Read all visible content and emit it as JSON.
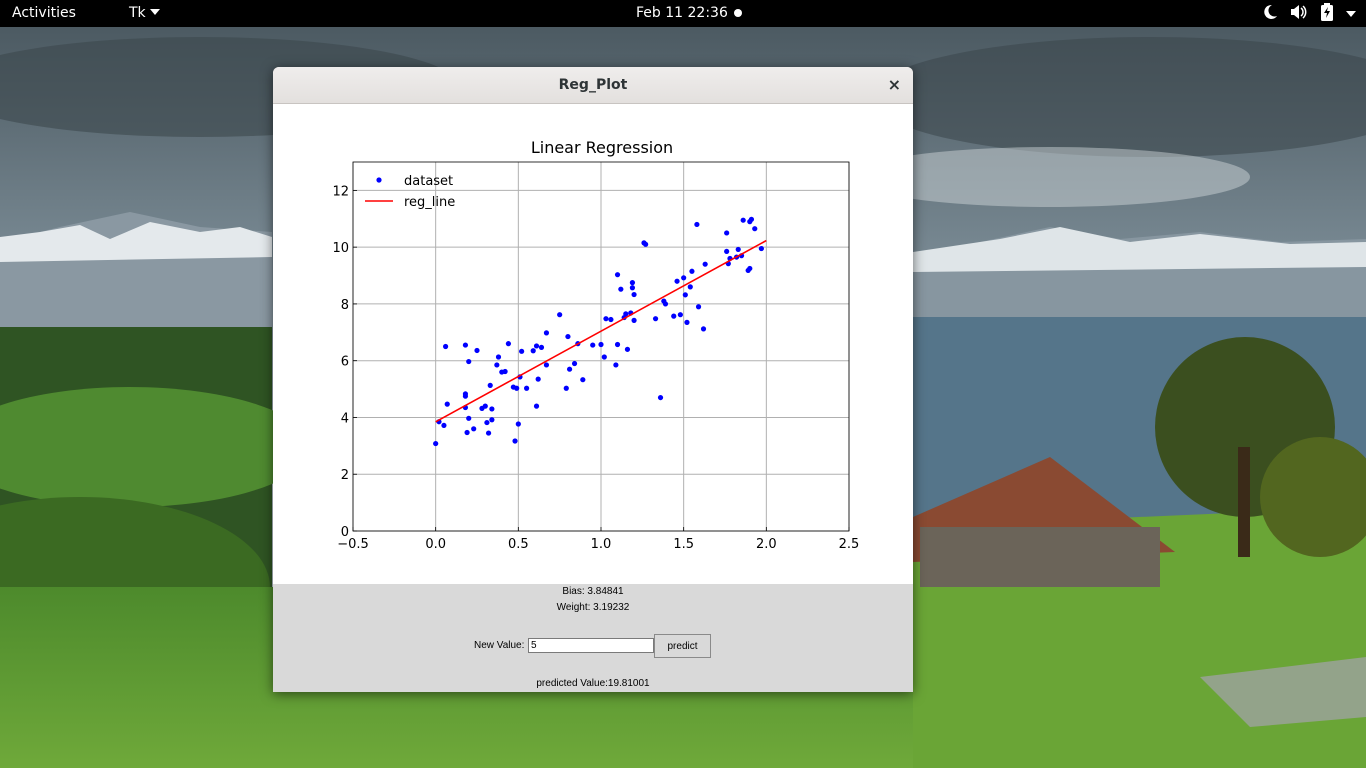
{
  "topbar": {
    "activities": "Activities",
    "app_menu": "Tk",
    "clock": "Feb 11  22:36"
  },
  "window": {
    "title": "Reg_Plot",
    "close_glyph": "×"
  },
  "controls": {
    "bias_text": "Bias: 3.84841",
    "weight_text": "Weight: 3.19232",
    "new_value_label": "New Value:",
    "new_value_input": "5",
    "predict_label": "predict",
    "predicted_text": "predicted Value:19.81001"
  },
  "icons": [
    "night-mode-icon",
    "volume-icon",
    "battery-icon",
    "chevron-down-icon",
    "close-icon"
  ],
  "colors": {
    "scatter": "#0000ff",
    "reg_line": "#ff0000",
    "grid": "#b0b0b0"
  },
  "chart_data": {
    "type": "scatter",
    "title": "Linear Regression",
    "xlabel": "",
    "ylabel": "",
    "xlim": [
      -0.5,
      2.5
    ],
    "ylim": [
      0,
      13
    ],
    "xticks": [
      -0.5,
      0.0,
      0.5,
      1.0,
      1.5,
      2.0,
      2.5
    ],
    "xtick_labels": [
      "−0.5",
      "0.0",
      "0.5",
      "1.0",
      "1.5",
      "2.0",
      "2.5"
    ],
    "yticks": [
      0,
      2,
      4,
      6,
      8,
      10,
      12
    ],
    "ytick_labels": [
      "0",
      "2",
      "4",
      "6",
      "8",
      "10",
      "12"
    ],
    "grid": true,
    "legend": "top-left",
    "series": [
      {
        "name": "dataset",
        "kind": "scatter",
        "points": [
          [
            0.0,
            3.08
          ],
          [
            0.02,
            3.85
          ],
          [
            0.05,
            3.72
          ],
          [
            0.06,
            6.5
          ],
          [
            0.07,
            4.47
          ],
          [
            0.18,
            4.83
          ],
          [
            0.18,
            4.75
          ],
          [
            0.18,
            4.35
          ],
          [
            0.18,
            6.55
          ],
          [
            0.19,
            3.47
          ],
          [
            0.2,
            5.97
          ],
          [
            0.2,
            3.97
          ],
          [
            0.23,
            3.6
          ],
          [
            0.25,
            6.36
          ],
          [
            0.28,
            4.32
          ],
          [
            0.3,
            4.4
          ],
          [
            0.31,
            3.82
          ],
          [
            0.32,
            3.45
          ],
          [
            0.33,
            5.13
          ],
          [
            0.34,
            4.3
          ],
          [
            0.34,
            3.92
          ],
          [
            0.37,
            5.85
          ],
          [
            0.38,
            6.13
          ],
          [
            0.4,
            5.6
          ],
          [
            0.42,
            5.62
          ],
          [
            0.44,
            6.6
          ],
          [
            0.47,
            5.07
          ],
          [
            0.48,
            3.17
          ],
          [
            0.49,
            5.03
          ],
          [
            0.5,
            3.77
          ],
          [
            0.51,
            5.43
          ],
          [
            0.52,
            6.33
          ],
          [
            0.55,
            5.03
          ],
          [
            0.59,
            6.35
          ],
          [
            0.61,
            6.52
          ],
          [
            0.61,
            4.4
          ],
          [
            0.62,
            5.35
          ],
          [
            0.64,
            6.47
          ],
          [
            0.67,
            5.85
          ],
          [
            0.67,
            6.98
          ],
          [
            0.75,
            7.62
          ],
          [
            0.79,
            5.03
          ],
          [
            0.8,
            6.85
          ],
          [
            0.81,
            5.7
          ],
          [
            0.84,
            5.9
          ],
          [
            0.86,
            6.6
          ],
          [
            0.89,
            5.33
          ],
          [
            0.95,
            6.55
          ],
          [
            1.0,
            6.57
          ],
          [
            1.02,
            6.13
          ],
          [
            1.03,
            7.48
          ],
          [
            1.06,
            7.45
          ],
          [
            1.09,
            5.85
          ],
          [
            1.1,
            6.57
          ],
          [
            1.1,
            9.03
          ],
          [
            1.12,
            8.52
          ],
          [
            1.14,
            7.52
          ],
          [
            1.15,
            7.65
          ],
          [
            1.16,
            6.4
          ],
          [
            1.18,
            7.68
          ],
          [
            1.19,
            8.57
          ],
          [
            1.19,
            8.75
          ],
          [
            1.2,
            7.42
          ],
          [
            1.2,
            8.33
          ],
          [
            1.26,
            10.15
          ],
          [
            1.27,
            10.1
          ],
          [
            1.33,
            7.48
          ],
          [
            1.36,
            4.7
          ],
          [
            1.38,
            8.1
          ],
          [
            1.39,
            8.0
          ],
          [
            1.44,
            7.57
          ],
          [
            1.46,
            8.8
          ],
          [
            1.48,
            7.62
          ],
          [
            1.5,
            8.92
          ],
          [
            1.51,
            8.32
          ],
          [
            1.52,
            7.35
          ],
          [
            1.54,
            8.6
          ],
          [
            1.55,
            9.15
          ],
          [
            1.58,
            10.8
          ],
          [
            1.59,
            7.9
          ],
          [
            1.62,
            7.12
          ],
          [
            1.63,
            9.4
          ],
          [
            1.76,
            9.85
          ],
          [
            1.76,
            10.5
          ],
          [
            1.77,
            9.42
          ],
          [
            1.78,
            9.6
          ],
          [
            1.82,
            9.65
          ],
          [
            1.83,
            9.92
          ],
          [
            1.85,
            9.7
          ],
          [
            1.86,
            10.95
          ],
          [
            1.89,
            9.18
          ],
          [
            1.9,
            9.25
          ],
          [
            1.9,
            10.9
          ],
          [
            1.91,
            10.98
          ],
          [
            1.93,
            10.65
          ],
          [
            1.97,
            9.95
          ]
        ]
      },
      {
        "name": "reg_line",
        "kind": "line",
        "points": [
          [
            0.0,
            3.848
          ],
          [
            2.0,
            10.233
          ]
        ]
      }
    ]
  }
}
